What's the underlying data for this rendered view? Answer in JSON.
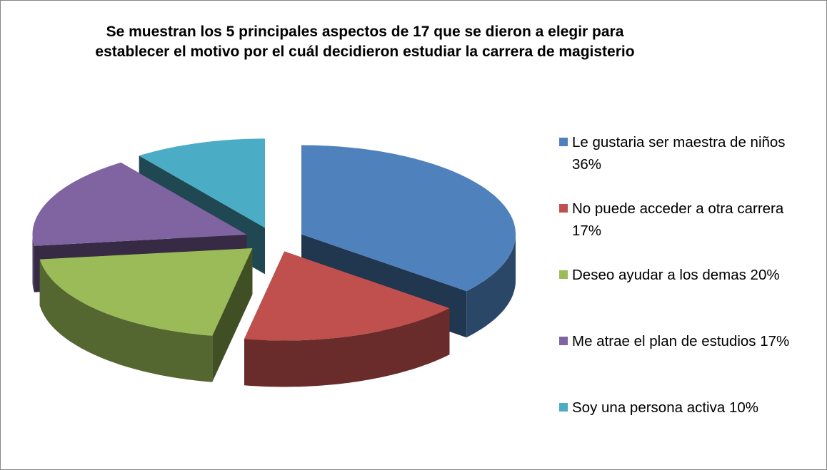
{
  "chart_data": {
    "type": "pie3d",
    "title": "Se muestran los 5 principales aspectos de 17 que se dieron a elegir para establecer el motivo por el cuál decidieron estudiar la carrera de magisterio",
    "categories": [
      "Le gustaria ser maestra de niños 36%",
      "No puede acceder a otra carrera 17%",
      "Deseo ayudar a los demas 20%",
      "Me atrae el plan de estudios 17%",
      "Soy una persona activa 10%"
    ],
    "values": [
      36,
      17,
      20,
      17,
      10
    ],
    "colors": [
      "#4f81bd",
      "#c0504d",
      "#9bbb59",
      "#8064a2",
      "#4bacc6"
    ],
    "legend": "right"
  }
}
